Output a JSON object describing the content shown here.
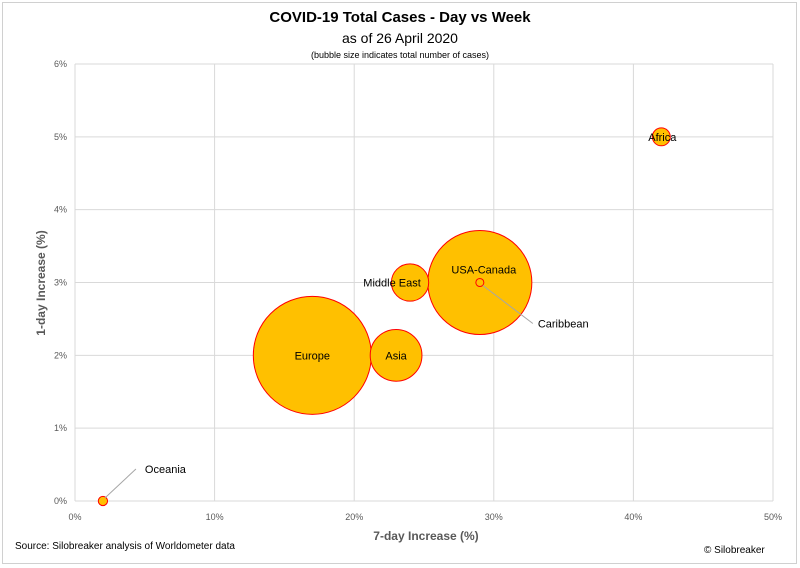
{
  "titles": {
    "title": "COVID-19 Total Cases - Day vs Week",
    "subtitle": "as of 26 April 2020",
    "note": "(bubble size indicates total number of cases)"
  },
  "footer": {
    "source": "Source: Silobreaker analysis of Worldometer data",
    "credit": "© Silobreaker"
  },
  "colors": {
    "bubble_fill": "#FFC000",
    "bubble_stroke": "#FF0000",
    "grid": "#d9d9d9",
    "leader": "#a6a6a6"
  },
  "chart_data": {
    "type": "bubble",
    "xlabel": "7-day Increase (%)",
    "ylabel": "1-day Increase (%)",
    "xlim": [
      0,
      50
    ],
    "ylim": [
      0,
      6
    ],
    "xticks": [
      "0%",
      "10%",
      "20%",
      "30%",
      "40%",
      "50%"
    ],
    "yticks": [
      "0%",
      "1%",
      "2%",
      "3%",
      "4%",
      "5%",
      "6%"
    ],
    "grid": true,
    "points": [
      {
        "name": "Europe",
        "x": 17,
        "y": 2,
        "size": 1300000
      },
      {
        "name": "USA-Canada",
        "x": 29,
        "y": 3,
        "size": 1010000
      },
      {
        "name": "Asia",
        "x": 23,
        "y": 2,
        "size": 250000
      },
      {
        "name": "Middle East",
        "x": 24,
        "y": 3,
        "size": 130000
      },
      {
        "name": "Africa",
        "x": 42,
        "y": 5,
        "size": 30000
      },
      {
        "name": "Caribbean",
        "x": 29,
        "y": 3,
        "size": 6000
      },
      {
        "name": "Oceania",
        "x": 2,
        "y": 0,
        "size": 8000
      }
    ]
  }
}
